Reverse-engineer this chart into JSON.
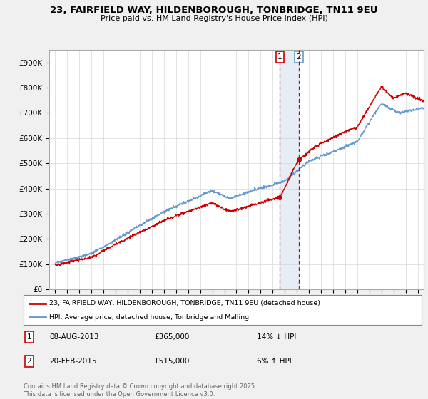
{
  "title": "23, FAIRFIELD WAY, HILDENBOROUGH, TONBRIDGE, TN11 9EU",
  "subtitle": "Price paid vs. HM Land Registry's House Price Index (HPI)",
  "ylabel_ticks": [
    "£0",
    "£100K",
    "£200K",
    "£300K",
    "£400K",
    "£500K",
    "£600K",
    "£700K",
    "£800K",
    "£900K"
  ],
  "ylim": [
    0,
    950000
  ],
  "xlim_start": 1994.5,
  "xlim_end": 2025.5,
  "transaction1": {
    "date": "08-AUG-2013",
    "price": 365000,
    "hpi_rel": "14% ↓ HPI",
    "label": "1",
    "year": 2013.6
  },
  "transaction2": {
    "date": "20-FEB-2015",
    "price": 515000,
    "hpi_rel": "6% ↑ HPI",
    "label": "2",
    "year": 2015.15
  },
  "legend_line1": "23, FAIRFIELD WAY, HILDENBOROUGH, TONBRIDGE, TN11 9EU (detached house)",
  "legend_line2": "HPI: Average price, detached house, Tonbridge and Malling",
  "footnote": "Contains HM Land Registry data © Crown copyright and database right 2025.\nThis data is licensed under the Open Government Licence v3.0.",
  "color_red": "#cc0000",
  "color_blue": "#6699cc",
  "color_vline": "#cc0000",
  "color_vline_fill": "#c8d8e8",
  "background_color": "#f0f0f0",
  "plot_bg": "#ffffff",
  "grid_color": "#d8d8d8"
}
